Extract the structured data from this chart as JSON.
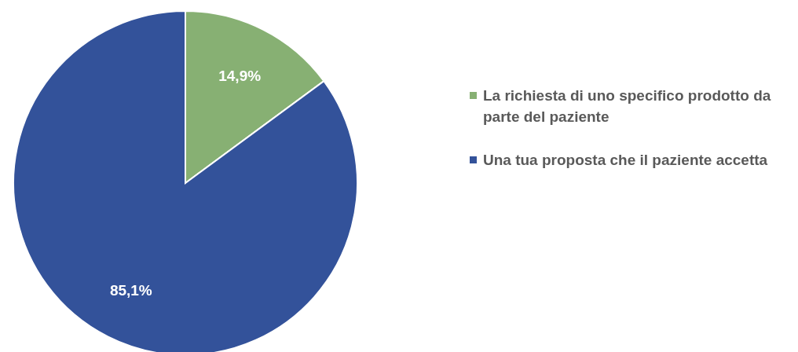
{
  "chart_data": {
    "type": "pie",
    "categories": [
      "La richiesta di uno specifico prodotto da parte del paziente",
      "Una tua proposta che il paziente accetta"
    ],
    "values": [
      14.9,
      85.1
    ],
    "colors": [
      "#87b073",
      "#33529a"
    ],
    "value_labels": [
      "14,9%",
      "85,1%"
    ],
    "legend": "right"
  }
}
